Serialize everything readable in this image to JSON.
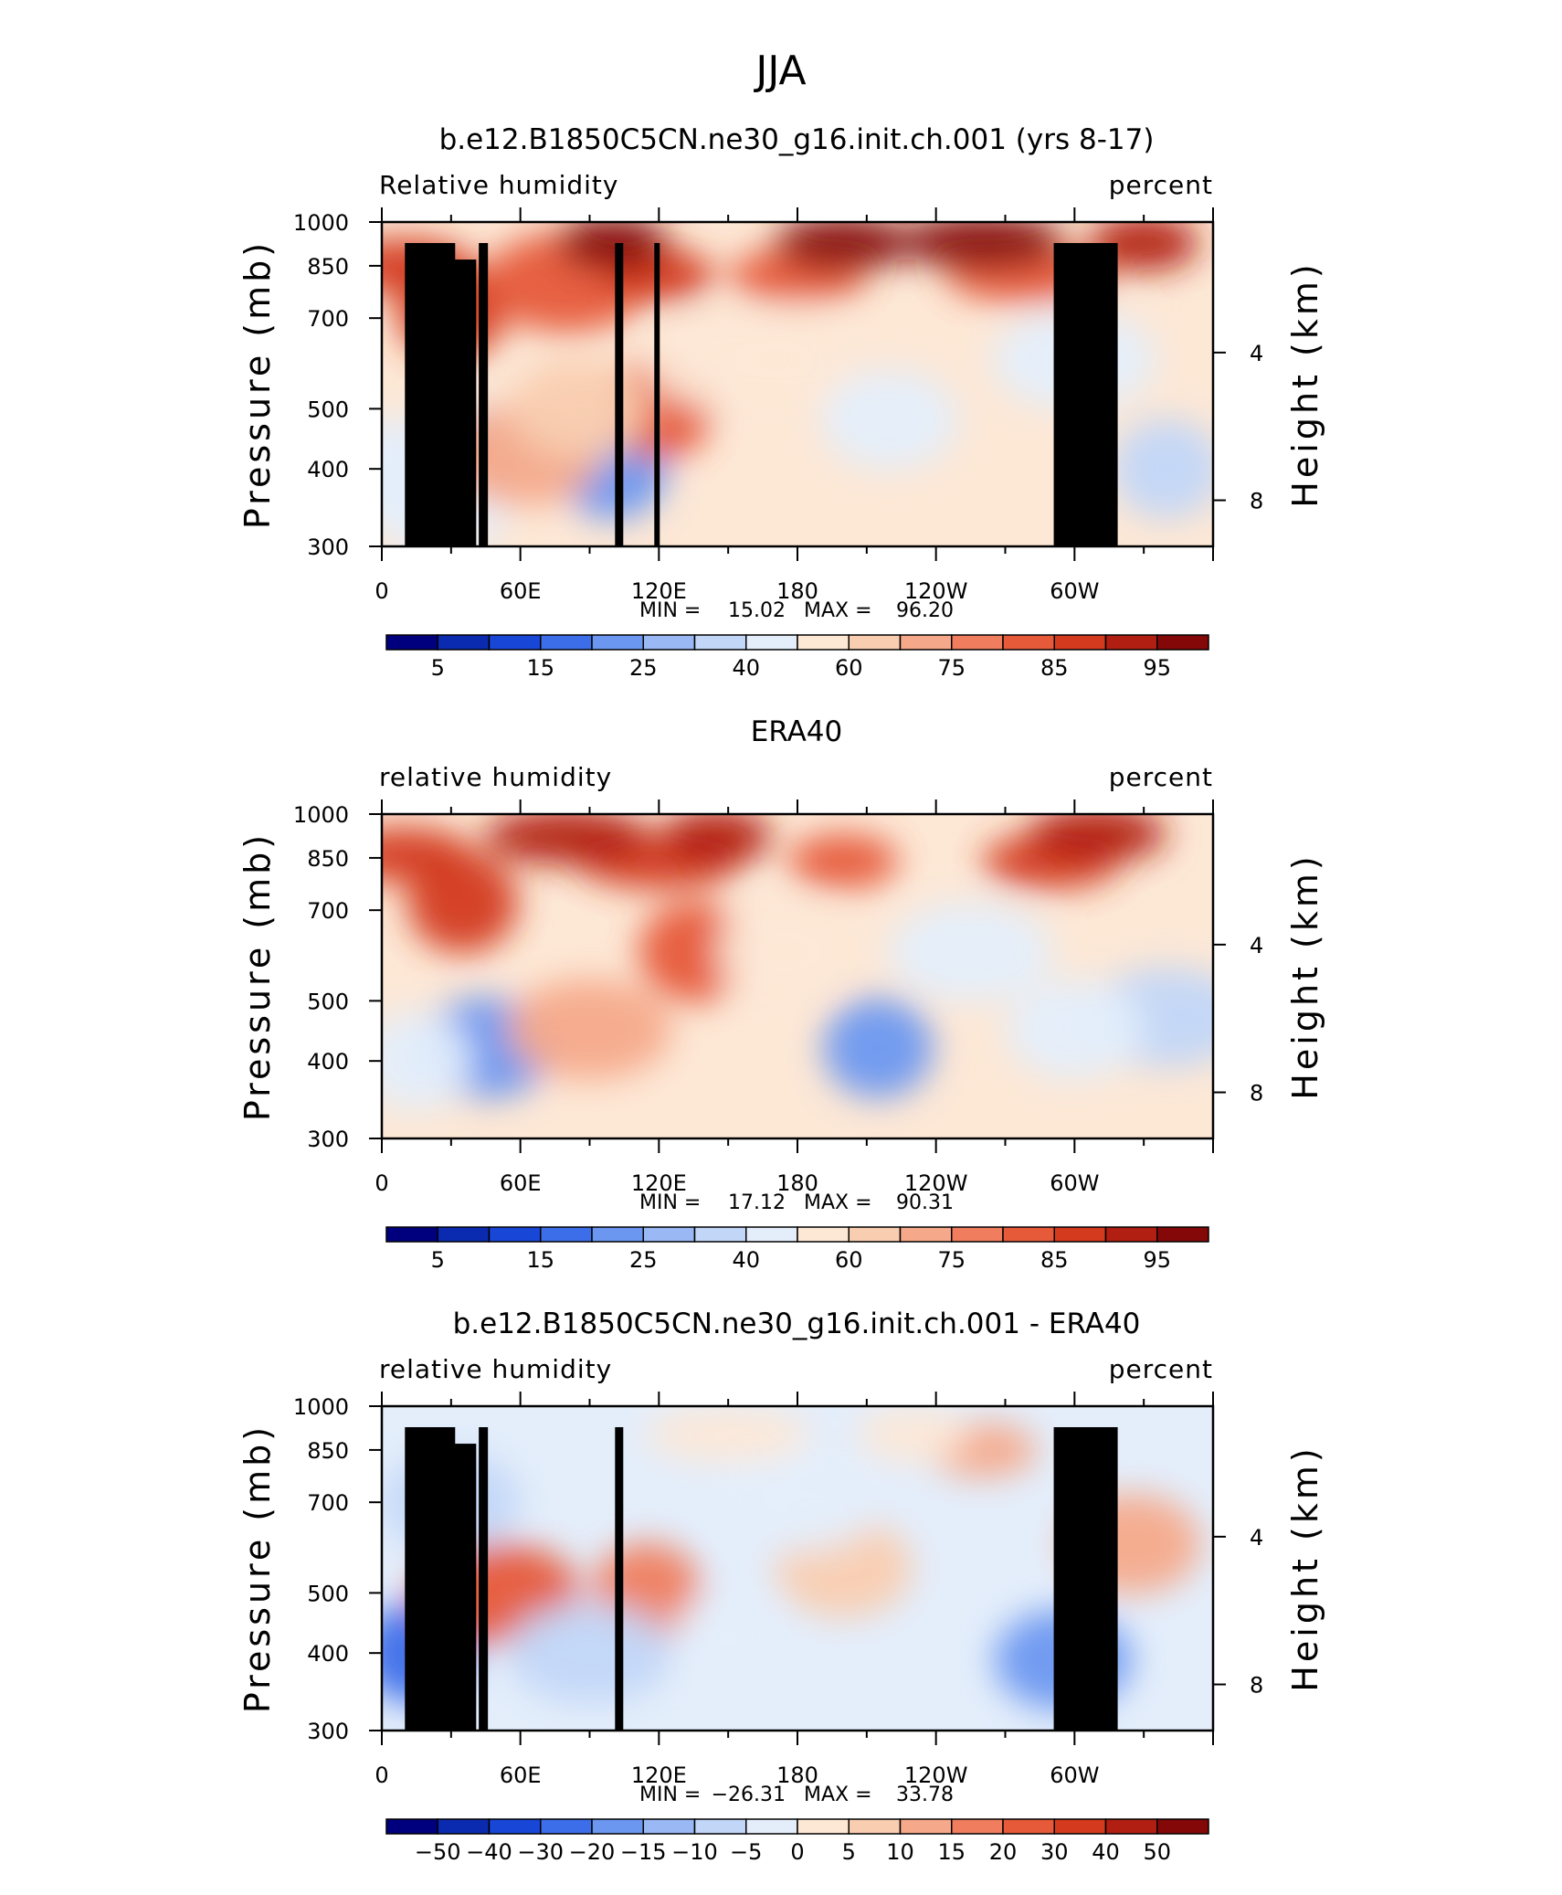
{
  "figure_title": "JJA",
  "chart_data": [
    {
      "type": "heatmap",
      "title": "b.e12.B1850C5CN.ne30_g16.init.ch.001 (yrs 8-17)",
      "left_label": "Relative humidity",
      "right_label": "percent",
      "xlabel": "",
      "ylabel": "Pressure (mb)",
      "y2label": "Height (km)",
      "x_ticks": [
        "0",
        "60E",
        "120E",
        "180",
        "120W",
        "60W"
      ],
      "y_ticks": [
        "300",
        "400",
        "500",
        "700",
        "850",
        "1000"
      ],
      "y2_ticks": [
        "8",
        "4"
      ],
      "ylim": [
        1000,
        300
      ],
      "min_label": "MIN =",
      "min_value": "15.02",
      "max_label": "MAX =",
      "max_value": "96.20",
      "colorbar_labels": [
        "5",
        "15",
        "25",
        "40",
        "60",
        "75",
        "85",
        "95"
      ],
      "colorbar_colors": [
        "#00007f",
        "#0a2bb0",
        "#1847d8",
        "#3d6ee9",
        "#6c97f0",
        "#99b8f4",
        "#c2d6f8",
        "#e4eefb",
        "#fde8d6",
        "#f9cdb0",
        "#f5a98a",
        "#ef7d5e",
        "#e65a3a",
        "#d33a1e",
        "#b11e12",
        "#850808"
      ],
      "colorbar_levels": [
        5,
        10,
        15,
        20,
        25,
        30,
        40,
        50,
        60,
        65,
        70,
        75,
        80,
        85,
        90,
        95
      ],
      "series": [
        {
          "lon": 100,
          "pressure": 400,
          "value": 22
        },
        {
          "lon": 40,
          "pressure": 420,
          "value": 38
        },
        {
          "lon": 5,
          "pressure": 400,
          "value": 40
        },
        {
          "lon": 340,
          "pressure": 400,
          "value": 38
        },
        {
          "lon": 25,
          "pressure": 350,
          "value": 45
        },
        {
          "lon": 60,
          "pressure": 420,
          "value": 65
        },
        {
          "lon": 120,
          "pressure": 500,
          "value": 75
        },
        {
          "lon": 85,
          "pressure": 500,
          "value": 62
        },
        {
          "lon": 150,
          "pressure": 600,
          "value": 55
        },
        {
          "lon": 180,
          "pressure": 600,
          "value": 50
        },
        {
          "lon": 220,
          "pressure": 480,
          "value": 40
        },
        {
          "lon": 300,
          "pressure": 600,
          "value": 45
        },
        {
          "lon": 30,
          "pressure": 720,
          "value": 80
        },
        {
          "lon": 10,
          "pressure": 850,
          "value": 82
        },
        {
          "lon": 80,
          "pressure": 800,
          "value": 75
        },
        {
          "lon": 120,
          "pressure": 820,
          "value": 82
        },
        {
          "lon": 180,
          "pressure": 820,
          "value": 78
        },
        {
          "lon": 280,
          "pressure": 820,
          "value": 78
        },
        {
          "lon": 100,
          "pressure": 925,
          "value": 90
        },
        {
          "lon": 200,
          "pressure": 925,
          "value": 90
        },
        {
          "lon": 260,
          "pressure": 930,
          "value": 92
        },
        {
          "lon": 330,
          "pressure": 925,
          "value": 88
        }
      ]
    },
    {
      "type": "heatmap",
      "title": "ERA40",
      "left_label": "relative humidity",
      "right_label": "percent",
      "xlabel": "",
      "ylabel": "Pressure (mb)",
      "y2label": "Height (km)",
      "x_ticks": [
        "0",
        "60E",
        "120E",
        "180",
        "120W",
        "60W"
      ],
      "y_ticks": [
        "300",
        "400",
        "500",
        "700",
        "850",
        "1000"
      ],
      "y2_ticks": [
        "8",
        "4"
      ],
      "ylim": [
        1000,
        300
      ],
      "min_label": "MIN =",
      "min_value": "17.12",
      "max_label": "MAX =",
      "max_value": "90.31",
      "colorbar_labels": [
        "5",
        "15",
        "25",
        "40",
        "60",
        "75",
        "85",
        "95"
      ],
      "colorbar_colors": [
        "#00007f",
        "#0a2bb0",
        "#1847d8",
        "#3d6ee9",
        "#6c97f0",
        "#99b8f4",
        "#c2d6f8",
        "#e4eefb",
        "#fde8d6",
        "#f9cdb0",
        "#f5a98a",
        "#ef7d5e",
        "#e65a3a",
        "#d33a1e",
        "#b11e12",
        "#850808"
      ],
      "colorbar_levels": [
        5,
        10,
        15,
        20,
        25,
        30,
        40,
        50,
        60,
        65,
        70,
        75,
        80,
        85,
        90,
        95
      ],
      "series": [
        {
          "lon": 215,
          "pressure": 420,
          "value": 20
        },
        {
          "lon": 45,
          "pressure": 420,
          "value": 22
        },
        {
          "lon": 340,
          "pressure": 470,
          "value": 32
        },
        {
          "lon": 15,
          "pressure": 400,
          "value": 48
        },
        {
          "lon": 300,
          "pressure": 450,
          "value": 45
        },
        {
          "lon": 90,
          "pressure": 450,
          "value": 68
        },
        {
          "lon": 135,
          "pressure": 600,
          "value": 78
        },
        {
          "lon": 175,
          "pressure": 600,
          "value": 55
        },
        {
          "lon": 255,
          "pressure": 600,
          "value": 45
        },
        {
          "lon": 35,
          "pressure": 720,
          "value": 82
        },
        {
          "lon": 10,
          "pressure": 860,
          "value": 84
        },
        {
          "lon": 120,
          "pressure": 840,
          "value": 80
        },
        {
          "lon": 200,
          "pressure": 840,
          "value": 78
        },
        {
          "lon": 290,
          "pressure": 840,
          "value": 80
        },
        {
          "lon": 80,
          "pressure": 920,
          "value": 88
        },
        {
          "lon": 145,
          "pressure": 920,
          "value": 88
        },
        {
          "lon": 310,
          "pressure": 930,
          "value": 85
        }
      ]
    },
    {
      "type": "heatmap",
      "title": "b.e12.B1850C5CN.ne30_g16.init.ch.001 - ERA40",
      "left_label": "relative humidity",
      "right_label": "percent",
      "xlabel": "",
      "ylabel": "Pressure (mb)",
      "y2label": "Height (km)",
      "x_ticks": [
        "0",
        "60E",
        "120E",
        "180",
        "120W",
        "60W"
      ],
      "y_ticks": [
        "300",
        "400",
        "500",
        "700",
        "850",
        "1000"
      ],
      "y2_ticks": [
        "8",
        "4"
      ],
      "ylim": [
        1000,
        300
      ],
      "min_label": "MIN =",
      "min_value": "−26.31",
      "max_label": "MAX =",
      "max_value": "33.78",
      "colorbar_labels": [
        "−50",
        "−40",
        "−30",
        "−20",
        "−15",
        "−10",
        "−5",
        "0",
        "5",
        "10",
        "15",
        "20",
        "30",
        "40",
        "50"
      ],
      "colorbar_colors": [
        "#00007f",
        "#0a2bb0",
        "#1847d8",
        "#3d6ee9",
        "#6c97f0",
        "#99b8f4",
        "#c2d6f8",
        "#e4eefb",
        "#fde8d6",
        "#f9cdb0",
        "#f5a98a",
        "#ef7d5e",
        "#e65a3a",
        "#d33a1e",
        "#b11e12",
        "#850808"
      ],
      "colorbar_levels": [
        -50,
        -40,
        -30,
        -20,
        -15,
        -10,
        -5,
        0,
        5,
        10,
        15,
        20,
        30,
        40,
        50
      ],
      "series": [
        {
          "lon": 15,
          "pressure": 400,
          "value": -22
        },
        {
          "lon": 295,
          "pressure": 390,
          "value": -20
        },
        {
          "lon": 50,
          "pressure": 500,
          "value": 22
        },
        {
          "lon": 115,
          "pressure": 500,
          "value": 16
        },
        {
          "lon": 325,
          "pressure": 600,
          "value": 12
        },
        {
          "lon": 90,
          "pressure": 400,
          "value": -8
        },
        {
          "lon": 150,
          "pressure": 420,
          "value": -5
        },
        {
          "lon": 200,
          "pressure": 550,
          "value": 5
        },
        {
          "lon": 180,
          "pressure": 700,
          "value": -3
        },
        {
          "lon": 260,
          "pressure": 850,
          "value": 14
        },
        {
          "lon": 30,
          "pressure": 700,
          "value": -6
        },
        {
          "lon": 150,
          "pressure": 900,
          "value": 4
        },
        {
          "lon": 230,
          "pressure": 900,
          "value": 3
        }
      ]
    }
  ]
}
